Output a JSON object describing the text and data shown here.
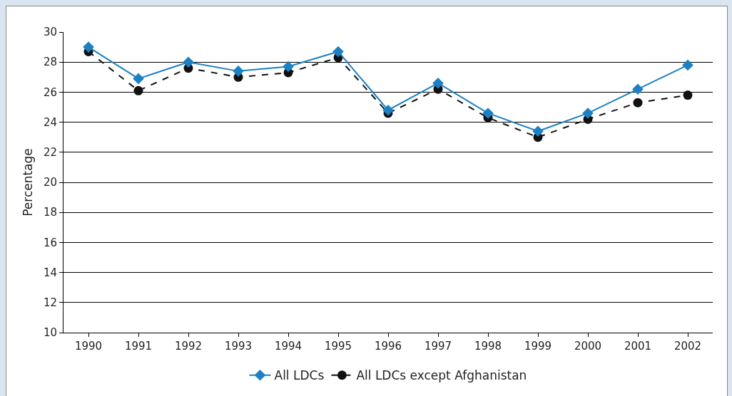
{
  "chart_data": {
    "type": "line",
    "ylabel": "Percentage",
    "categories": [
      "1990",
      "1991",
      "1992",
      "1993",
      "1994",
      "1995",
      "1996",
      "1997",
      "1998",
      "1999",
      "2000",
      "2001",
      "2002"
    ],
    "series": [
      {
        "name": "All LDCs",
        "color": "#1b80c4",
        "marker": "diamond",
        "line_style": "solid",
        "values": [
          29.0,
          26.9,
          28.0,
          27.4,
          27.7,
          28.7,
          24.8,
          26.6,
          24.6,
          23.4,
          24.6,
          26.2,
          27.8
        ]
      },
      {
        "name": "All LDCs except Afghanistan",
        "color": "#111111",
        "marker": "circle",
        "line_style": "dashed",
        "values": [
          28.7,
          26.1,
          27.6,
          27.0,
          27.3,
          28.3,
          24.6,
          26.2,
          24.3,
          23.0,
          24.2,
          25.3,
          25.8
        ]
      }
    ],
    "ylim": [
      10,
      30
    ],
    "yticks": [
      10,
      12,
      14,
      16,
      18,
      20,
      22,
      24,
      26,
      28,
      30
    ],
    "grid": "y",
    "legend": "bottom"
  }
}
